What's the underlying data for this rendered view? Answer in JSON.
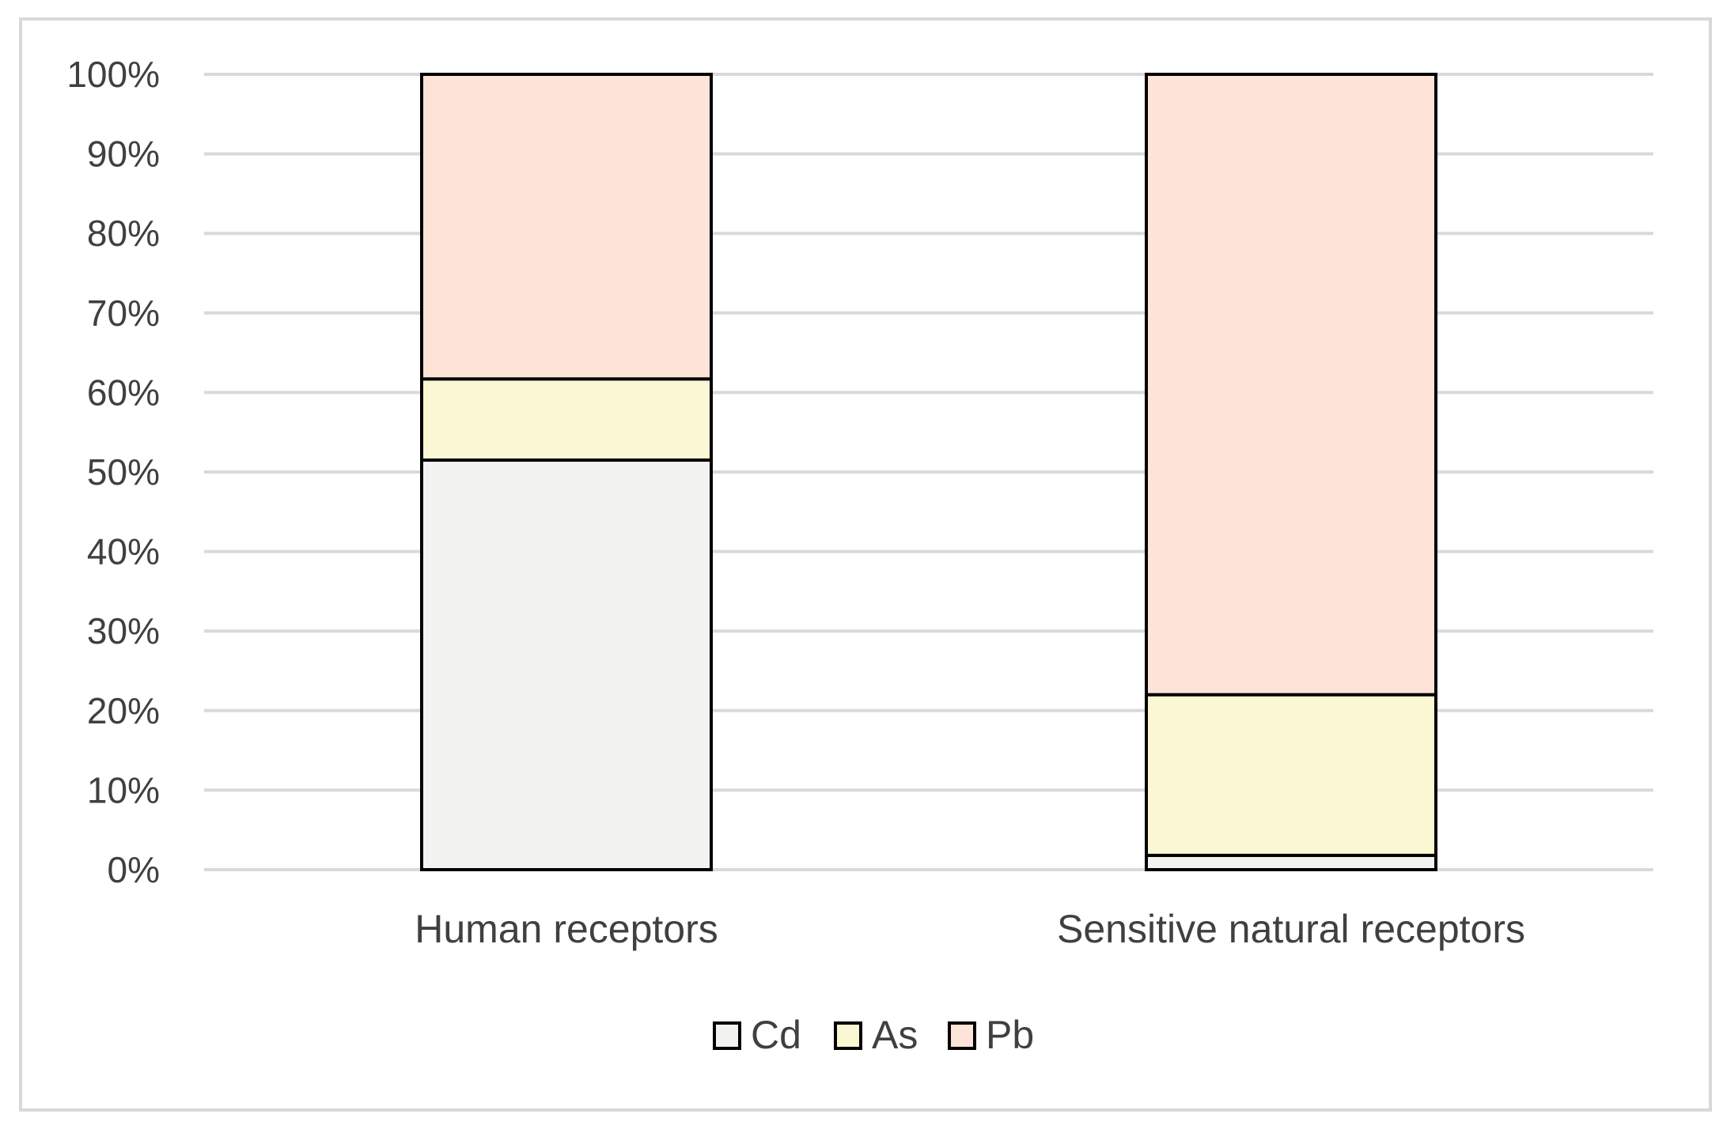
{
  "chart_data": {
    "type": "bar",
    "stacked": true,
    "percent_stacked": true,
    "title": "",
    "xlabel": "",
    "ylabel": "",
    "ylim": [
      0,
      100
    ],
    "y_ticks": [
      "0%",
      "10%",
      "20%",
      "30%",
      "40%",
      "50%",
      "60%",
      "70%",
      "80%",
      "90%",
      "100%"
    ],
    "y_tick_values": [
      0,
      10,
      20,
      30,
      40,
      50,
      60,
      70,
      80,
      90,
      100
    ],
    "grid": true,
    "legend_position": "bottom",
    "categories": [
      "Human receptors",
      "Sensitive natural receptors"
    ],
    "series": [
      {
        "name": "Cd",
        "values": [
          51.5,
          1.8
        ],
        "color": "#f2f2f0"
      },
      {
        "name": "As",
        "values": [
          10.2,
          20.2
        ],
        "color": "#fbf7d4"
      },
      {
        "name": "Pb",
        "values": [
          38.3,
          78.0
        ],
        "color": "#fde3d8"
      }
    ],
    "colors": {
      "gridline": "#d9d9d9",
      "bar_outline": "#000000",
      "text": "#404040",
      "frame": "#d9d9d9"
    }
  }
}
